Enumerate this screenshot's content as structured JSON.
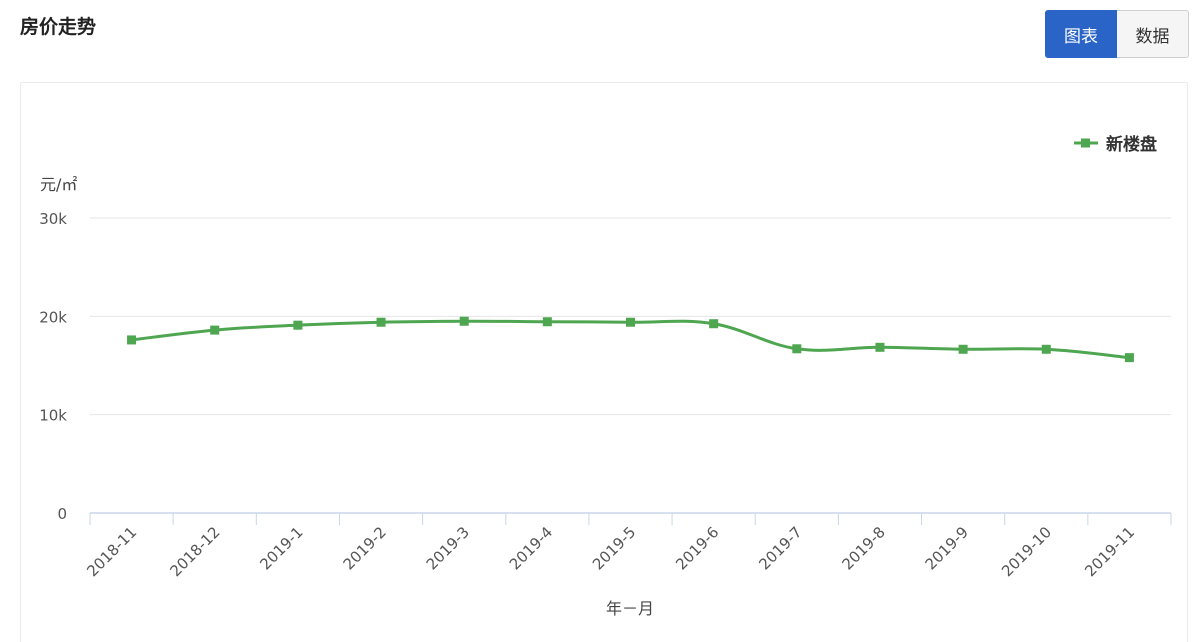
{
  "header": {
    "title": "房价走势",
    "view_toggle": {
      "chart_label": "图表",
      "data_label": "数据",
      "active": "chart"
    }
  },
  "colors": {
    "series": "#4ea650",
    "accent": "#2a64c6",
    "grid": "#e6e6e6",
    "axis": "#c8d6ea"
  },
  "chart_data": {
    "type": "line",
    "unit_label": "元/㎡",
    "xlabel": "年－月",
    "ylim": [
      0,
      30000
    ],
    "yticks": [
      0,
      10000,
      20000,
      30000
    ],
    "ytick_labels": [
      "0",
      "10k",
      "20k",
      "30k"
    ],
    "grid": true,
    "legend_position": "top-right",
    "categories": [
      "2018-11",
      "2018-12",
      "2019-1",
      "2019-2",
      "2019-3",
      "2019-4",
      "2019-5",
      "2019-6",
      "2019-7",
      "2019-8",
      "2019-9",
      "2019-10",
      "2019-11"
    ],
    "series": [
      {
        "name": "新楼盘",
        "color": "#4ea650",
        "values": [
          17600,
          18600,
          19100,
          19400,
          19500,
          19450,
          19400,
          19250,
          16700,
          16850,
          16650,
          16650,
          15800
        ]
      }
    ]
  }
}
